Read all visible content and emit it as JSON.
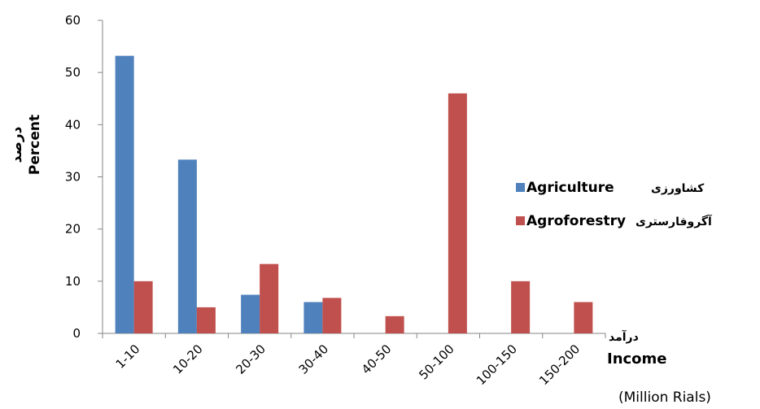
{
  "colors": {
    "agriculture": "#4F81BD",
    "agroforestry": "#C0504D",
    "axis": "#868686"
  },
  "chart_data": {
    "type": "bar",
    "categories": [
      "1-10",
      "10-20",
      "20-30",
      "30-40",
      "40-50",
      "50-100",
      "100-150",
      "150-200"
    ],
    "series": [
      {
        "name": "Agriculture",
        "name_fa": "کشاورزی",
        "values": [
          53.2,
          33.3,
          7.4,
          6.0,
          0,
          0,
          0,
          0
        ]
      },
      {
        "name": "Agroforestry",
        "name_fa": "آگروفارستری",
        "values": [
          10.0,
          5.0,
          13.3,
          6.8,
          3.3,
          46.0,
          10.0,
          6.0
        ]
      }
    ],
    "ylabel": "Percent",
    "ylabel_fa": "درصد",
    "xlabel": "Income",
    "xlabel_fa": "درآمد",
    "xlabel_unit": "(Million Rials)",
    "ylim": [
      0,
      60
    ],
    "yticks": [
      "0",
      "10",
      "20",
      "30",
      "40",
      "50",
      "60"
    ],
    "grid": false,
    "legend": "right"
  }
}
